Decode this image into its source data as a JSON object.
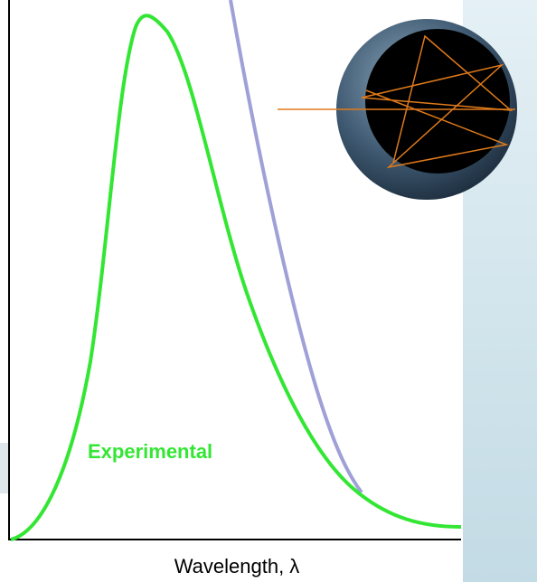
{
  "curve_label": "Experimental",
  "x_axis_label": "Wavelength, λ"
}
